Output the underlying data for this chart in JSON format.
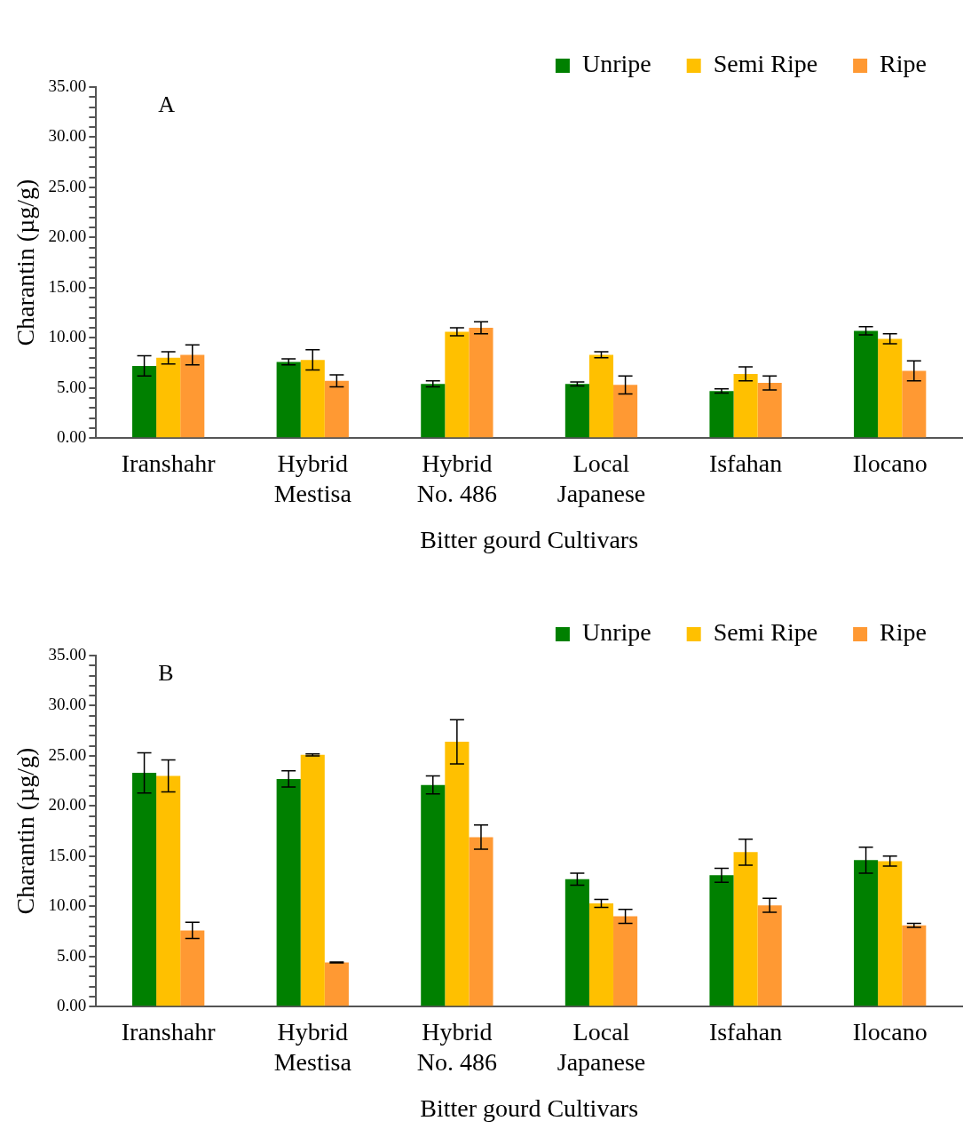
{
  "chart_data": [
    {
      "type": "bar",
      "annotations": [
        "A"
      ],
      "xlabel": "Bitter gourd Cultivars",
      "ylabel": "Charantin (µg/g)",
      "categories": [
        "Iranshahr",
        "Hybrid Mestisa",
        "Hybrid No. 486",
        "Local Japanese",
        "Isfahan",
        "Ilocano"
      ],
      "series": [
        {
          "name": "Unripe",
          "color": "#008000",
          "values": [
            7.2,
            7.6,
            5.4,
            5.4,
            4.7,
            10.7
          ],
          "errors": [
            1.0,
            0.3,
            0.3,
            0.2,
            0.2,
            0.4
          ]
        },
        {
          "name": "Semi Ripe",
          "color": "#ffc000",
          "values": [
            8.0,
            7.8,
            10.6,
            8.3,
            6.4,
            9.9
          ],
          "errors": [
            0.6,
            1.0,
            0.4,
            0.3,
            0.7,
            0.5
          ]
        },
        {
          "name": "Ripe",
          "color": "#ff9933",
          "values": [
            8.3,
            5.7,
            11.0,
            5.3,
            5.5,
            6.7
          ],
          "errors": [
            1.0,
            0.6,
            0.6,
            0.9,
            0.7,
            1.0
          ]
        }
      ],
      "ylim": [
        0,
        35
      ],
      "yticks": [
        {
          "value": 0,
          "label": "0.00"
        },
        {
          "value": 1,
          "label": null
        },
        {
          "value": 2,
          "label": null
        },
        {
          "value": 3,
          "label": null
        },
        {
          "value": 4,
          "label": null
        },
        {
          "value": 5,
          "label": "5.00"
        },
        {
          "value": 6,
          "label": null
        },
        {
          "value": 7,
          "label": null
        },
        {
          "value": 8,
          "label": null
        },
        {
          "value": 9,
          "label": null
        },
        {
          "value": 10,
          "label": "10.00"
        },
        {
          "value": 11,
          "label": null
        },
        {
          "value": 12,
          "label": null
        },
        {
          "value": 13,
          "label": null
        },
        {
          "value": 14,
          "label": null
        },
        {
          "value": 15,
          "label": "15.00"
        },
        {
          "value": 16,
          "label": null
        },
        {
          "value": 17,
          "label": null
        },
        {
          "value": 18,
          "label": null
        },
        {
          "value": 19,
          "label": null
        },
        {
          "value": 20,
          "label": "20.00"
        },
        {
          "value": 21,
          "label": null
        },
        {
          "value": 22,
          "label": null
        },
        {
          "value": 23,
          "label": null
        },
        {
          "value": 24,
          "label": null
        },
        {
          "value": 25,
          "label": "25.00"
        },
        {
          "value": 26,
          "label": null
        },
        {
          "value": 27,
          "label": null
        },
        {
          "value": 28,
          "label": null
        },
        {
          "value": 29,
          "label": null
        },
        {
          "value": 30,
          "label": "30.00"
        },
        {
          "value": 31,
          "label": null
        },
        {
          "value": 32,
          "label": null
        },
        {
          "value": 33,
          "label": null
        },
        {
          "value": 34,
          "label": null
        },
        {
          "value": 35,
          "label": "35.00"
        }
      ],
      "grid": false,
      "legend": "top right"
    },
    {
      "type": "bar",
      "annotations": [
        "B"
      ],
      "xlabel": "Bitter gourd Cultivars",
      "ylabel": "Charantin (µg/g)",
      "categories": [
        "Iranshahr",
        "Hybrid Mestisa",
        "Hybrid No. 486",
        "Local Japanese",
        "Isfahan",
        "Ilocano"
      ],
      "series": [
        {
          "name": "Unripe",
          "color": "#008000",
          "values": [
            23.3,
            22.7,
            22.1,
            12.7,
            13.1,
            14.6
          ],
          "errors": [
            2.0,
            0.8,
            0.9,
            0.6,
            0.7,
            1.3
          ]
        },
        {
          "name": "Semi Ripe",
          "color": "#ffc000",
          "values": [
            23.0,
            25.1,
            26.4,
            10.3,
            15.4,
            14.5
          ],
          "errors": [
            1.6,
            0.1,
            2.2,
            0.4,
            1.3,
            0.5
          ]
        },
        {
          "name": "Ripe",
          "color": "#ff9933",
          "values": [
            7.6,
            4.4,
            16.9,
            9.0,
            10.1,
            8.1
          ],
          "errors": [
            0.8,
            0.05,
            1.2,
            0.7,
            0.7,
            0.2
          ]
        }
      ],
      "ylim": [
        0,
        35
      ],
      "yticks": [
        {
          "value": 0,
          "label": "0.00"
        },
        {
          "value": 1,
          "label": null
        },
        {
          "value": 2,
          "label": null
        },
        {
          "value": 3,
          "label": null
        },
        {
          "value": 4,
          "label": null
        },
        {
          "value": 5,
          "label": "5.00"
        },
        {
          "value": 6,
          "label": null
        },
        {
          "value": 7,
          "label": null
        },
        {
          "value": 8,
          "label": null
        },
        {
          "value": 9,
          "label": null
        },
        {
          "value": 10,
          "label": "10.00"
        },
        {
          "value": 11,
          "label": null
        },
        {
          "value": 12,
          "label": null
        },
        {
          "value": 13,
          "label": null
        },
        {
          "value": 14,
          "label": null
        },
        {
          "value": 15,
          "label": "15.00"
        },
        {
          "value": 16,
          "label": null
        },
        {
          "value": 17,
          "label": null
        },
        {
          "value": 18,
          "label": null
        },
        {
          "value": 19,
          "label": null
        },
        {
          "value": 20,
          "label": "20.00"
        },
        {
          "value": 21,
          "label": null
        },
        {
          "value": 22,
          "label": null
        },
        {
          "value": 23,
          "label": null
        },
        {
          "value": 24,
          "label": null
        },
        {
          "value": 25,
          "label": "25.00"
        },
        {
          "value": 26,
          "label": null
        },
        {
          "value": 27,
          "label": null
        },
        {
          "value": 28,
          "label": null
        },
        {
          "value": 29,
          "label": null
        },
        {
          "value": 30,
          "label": "30.00"
        },
        {
          "value": 31,
          "label": null
        },
        {
          "value": 32,
          "label": null
        },
        {
          "value": 33,
          "label": null
        },
        {
          "value": 34,
          "label": null
        },
        {
          "value": 35,
          "label": "35.00"
        }
      ],
      "grid": false,
      "legend": "top right"
    }
  ]
}
